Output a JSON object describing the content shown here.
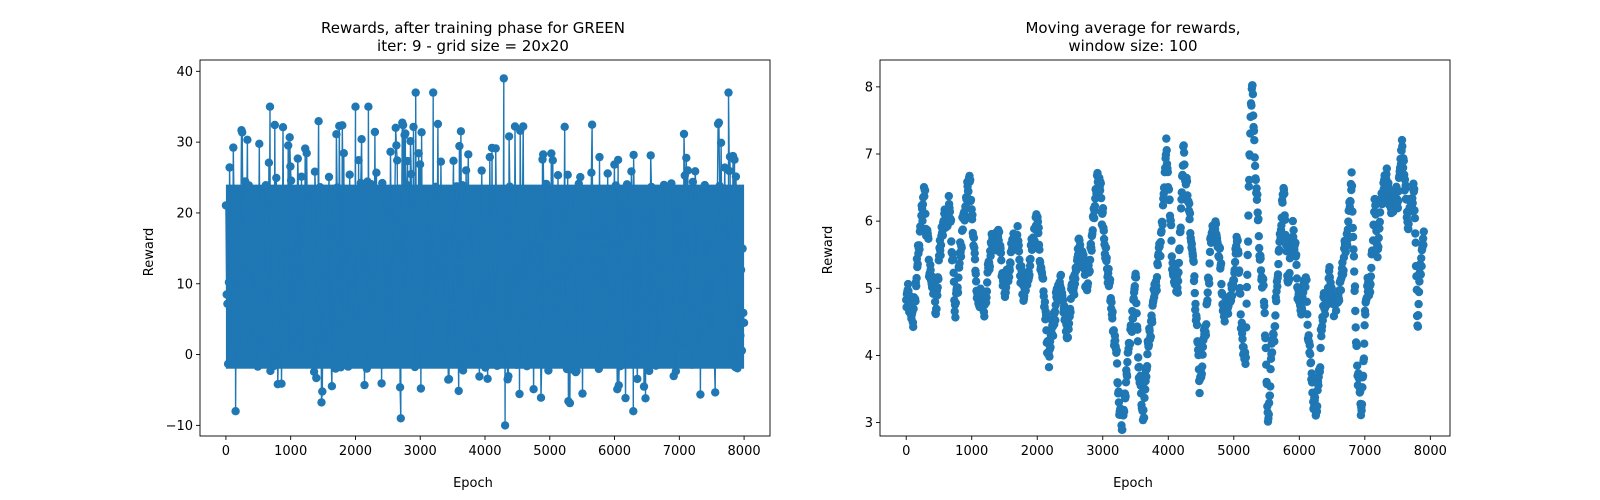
{
  "chart_data": [
    {
      "type": "line",
      "marker": "circle",
      "title": "Rewards, after training phase for GREEN\niter: 9 - grid size = 20x20",
      "title_lines": [
        "Rewards, after training phase for GREEN",
        "iter: 9 - grid size = 20x20"
      ],
      "xlabel": "Epoch",
      "ylabel": "Reward",
      "xlim": [
        -400,
        8400
      ],
      "ylim": [
        -11.5,
        41.6
      ],
      "xticks": [
        0,
        1000,
        2000,
        3000,
        4000,
        5000,
        6000,
        7000,
        8000
      ],
      "xtick_labels": [
        "0",
        "1000",
        "2000",
        "3000",
        "4000",
        "5000",
        "6000",
        "7000",
        "8000"
      ],
      "yticks": [
        -10,
        0,
        10,
        20,
        30,
        40
      ],
      "ytick_labels": [
        "−10",
        "0",
        "10",
        "20",
        "30",
        "40"
      ],
      "color": "#1f77b4",
      "x_range": [
        0,
        8000
      ],
      "value_band": [
        -10,
        39
      ],
      "typical_band": [
        -3,
        27
      ],
      "notable_points": [
        {
          "x": 680,
          "y": 35
        },
        {
          "x": 2000,
          "y": 35
        },
        {
          "x": 2200,
          "y": 35
        },
        {
          "x": 2930,
          "y": 37
        },
        {
          "x": 3200,
          "y": 37
        },
        {
          "x": 4290,
          "y": 39
        },
        {
          "x": 7760,
          "y": 37
        },
        {
          "x": 4310,
          "y": -10
        },
        {
          "x": 2700,
          "y": -9
        },
        {
          "x": 6290,
          "y": -8
        },
        {
          "x": 150,
          "y": -8
        }
      ]
    },
    {
      "type": "scatter",
      "marker": "circle",
      "title": "Moving average for rewards,\nwindow size: 100",
      "title_lines": [
        "Moving average for rewards,",
        "window size: 100"
      ],
      "xlabel": "Epoch",
      "ylabel": "Reward",
      "xlim": [
        -400,
        8300
      ],
      "ylim": [
        2.8,
        8.4
      ],
      "xticks": [
        0,
        1000,
        2000,
        3000,
        4000,
        5000,
        6000,
        7000,
        8000
      ],
      "xtick_labels": [
        "0",
        "1000",
        "2000",
        "3000",
        "4000",
        "5000",
        "6000",
        "7000",
        "8000"
      ],
      "yticks": [
        3,
        4,
        5,
        6,
        7,
        8
      ],
      "ytick_labels": [
        "3",
        "4",
        "5",
        "6",
        "7",
        "8"
      ],
      "color": "#1f77b4",
      "x_range": [
        0,
        7900
      ],
      "trend": [
        [
          0,
          5.0
        ],
        [
          100,
          4.5
        ],
        [
          200,
          5.8
        ],
        [
          280,
          6.3
        ],
        [
          350,
          5.3
        ],
        [
          450,
          4.8
        ],
        [
          550,
          5.9
        ],
        [
          650,
          6.3
        ],
        [
          750,
          4.7
        ],
        [
          850,
          5.8
        ],
        [
          960,
          6.7
        ],
        [
          1080,
          5.0
        ],
        [
          1200,
          4.6
        ],
        [
          1300,
          5.6
        ],
        [
          1400,
          5.9
        ],
        [
          1500,
          4.9
        ],
        [
          1600,
          5.6
        ],
        [
          1700,
          5.9
        ],
        [
          1800,
          4.8
        ],
        [
          1900,
          5.5
        ],
        [
          2000,
          6.0
        ],
        [
          2100,
          4.8
        ],
        [
          2180,
          4.0
        ],
        [
          2250,
          4.5
        ],
        [
          2350,
          5.2
        ],
        [
          2450,
          4.3
        ],
        [
          2550,
          5.0
        ],
        [
          2650,
          5.8
        ],
        [
          2750,
          5.0
        ],
        [
          2850,
          6.0
        ],
        [
          2950,
          6.8
        ],
        [
          3000,
          6.0
        ],
        [
          3100,
          5.0
        ],
        [
          3200,
          4.0
        ],
        [
          3280,
          3.0
        ],
        [
          3350,
          3.4
        ],
        [
          3420,
          4.4
        ],
        [
          3500,
          5.0
        ],
        [
          3560,
          3.8
        ],
        [
          3620,
          3.1
        ],
        [
          3700,
          4.2
        ],
        [
          3800,
          5.0
        ],
        [
          3900,
          5.8
        ],
        [
          3970,
          7.1
        ],
        [
          4050,
          5.5
        ],
        [
          4150,
          5.0
        ],
        [
          4230,
          7.0
        ],
        [
          4300,
          6.4
        ],
        [
          4400,
          5.0
        ],
        [
          4480,
          3.6
        ],
        [
          4550,
          4.2
        ],
        [
          4650,
          5.6
        ],
        [
          4750,
          5.9
        ],
        [
          4850,
          4.6
        ],
        [
          4950,
          4.9
        ],
        [
          5050,
          5.6
        ],
        [
          5120,
          4.4
        ],
        [
          5180,
          3.8
        ],
        [
          5230,
          6.6
        ],
        [
          5280,
          8.1
        ],
        [
          5350,
          6.4
        ],
        [
          5450,
          4.9
        ],
        [
          5520,
          3.1
        ],
        [
          5600,
          4.2
        ],
        [
          5700,
          5.6
        ],
        [
          5760,
          6.6
        ],
        [
          5830,
          4.9
        ],
        [
          5900,
          5.9
        ],
        [
          6000,
          4.8
        ],
        [
          6100,
          5.0
        ],
        [
          6200,
          3.4
        ],
        [
          6270,
          3.2
        ],
        [
          6350,
          4.6
        ],
        [
          6450,
          5.1
        ],
        [
          6550,
          4.6
        ],
        [
          6650,
          5.2
        ],
        [
          6750,
          5.8
        ],
        [
          6800,
          6.6
        ],
        [
          6880,
          4.0
        ],
        [
          6950,
          3.2
        ],
        [
          7000,
          4.6
        ],
        [
          7100,
          5.2
        ],
        [
          7150,
          6.3
        ],
        [
          7200,
          5.5
        ],
        [
          7300,
          6.7
        ],
        [
          7400,
          6.2
        ],
        [
          7500,
          6.4
        ],
        [
          7570,
          7.2
        ],
        [
          7650,
          6.0
        ],
        [
          7750,
          6.6
        ],
        [
          7800,
          4.6
        ],
        [
          7900,
          5.8
        ]
      ]
    }
  ]
}
